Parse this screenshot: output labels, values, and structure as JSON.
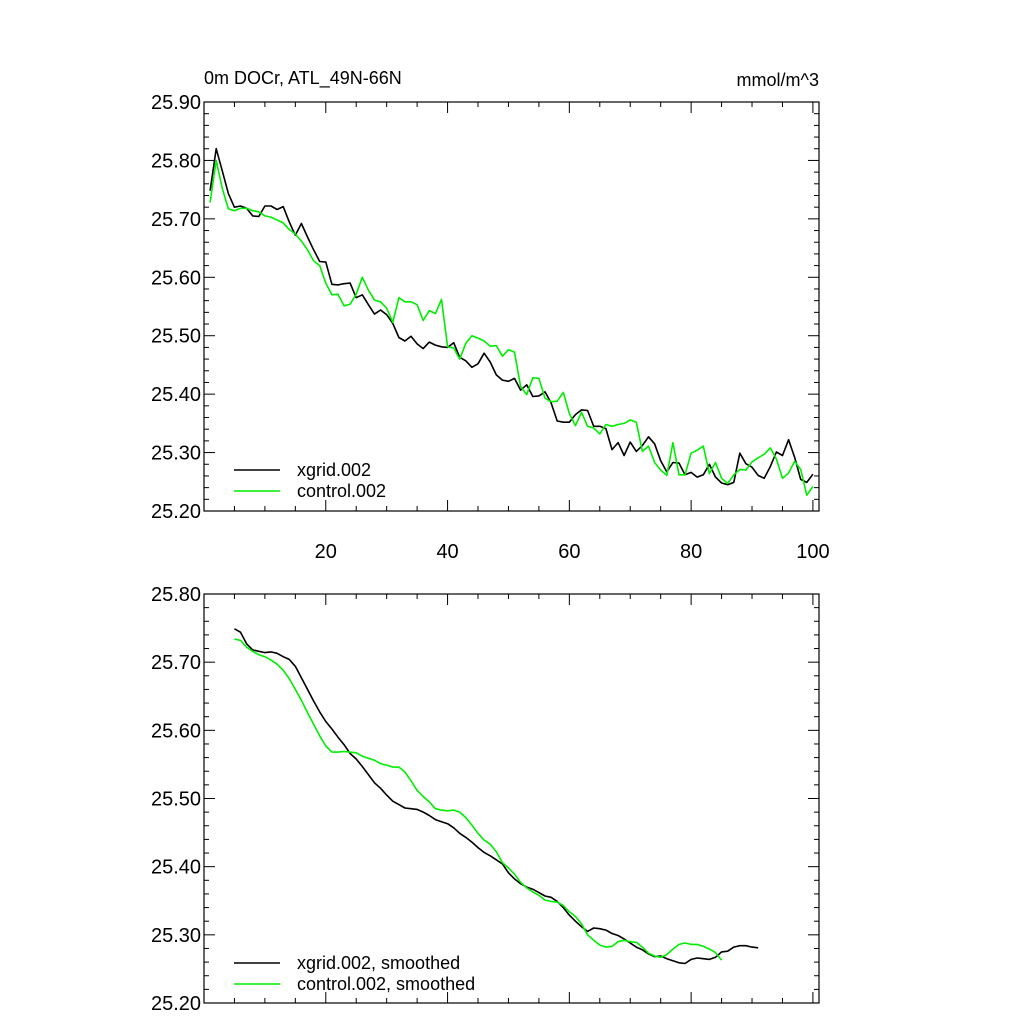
{
  "chart_data": [
    {
      "type": "line",
      "title": "0m DOCr, ATL_49N-66N",
      "units": "mmol/m^3",
      "xlabel": "",
      "ylabel": "",
      "xlim": [
        0,
        101
      ],
      "ylim": [
        25.2,
        25.9
      ],
      "x_ticks": [
        20,
        40,
        60,
        80,
        100
      ],
      "y_ticks": [
        "25.20",
        "25.30",
        "25.40",
        "25.50",
        "25.60",
        "25.70",
        "25.80",
        "25.90"
      ],
      "y_tick_values": [
        25.2,
        25.3,
        25.4,
        25.5,
        25.6,
        25.7,
        25.8,
        25.9
      ],
      "legend_position": "bottom-left",
      "grid": false,
      "series": [
        {
          "name": "xgrid.002",
          "color": "#000000",
          "x_start": 1,
          "values": [
            25.748,
            25.82,
            25.782,
            25.743,
            25.72,
            25.722,
            25.718,
            25.705,
            25.704,
            25.722,
            25.722,
            25.716,
            25.721,
            25.695,
            25.672,
            25.692,
            25.669,
            25.647,
            25.627,
            25.626,
            25.588,
            25.587,
            25.589,
            25.59,
            25.565,
            25.57,
            25.553,
            25.537,
            25.544,
            25.536,
            25.521,
            25.497,
            25.491,
            25.499,
            25.486,
            25.478,
            25.489,
            25.484,
            25.481,
            25.48,
            25.488,
            25.463,
            25.457,
            25.446,
            25.452,
            25.47,
            25.455,
            25.433,
            25.424,
            25.422,
            25.427,
            25.407,
            25.416,
            25.396,
            25.397,
            25.404,
            25.385,
            25.354,
            25.352,
            25.352,
            25.365,
            25.373,
            25.372,
            25.345,
            25.345,
            25.341,
            25.305,
            25.317,
            25.295,
            25.318,
            25.302,
            25.312,
            25.327,
            25.315,
            25.286,
            25.267,
            25.283,
            25.282,
            25.262,
            25.266,
            25.258,
            25.262,
            25.28,
            25.258,
            25.248,
            25.245,
            25.249,
            25.299,
            25.281,
            25.275,
            25.261,
            25.256,
            25.276,
            25.301,
            25.295,
            25.322,
            25.292,
            25.254,
            25.249,
            25.263
          ]
        },
        {
          "name": "control.002",
          "color": "#00ee00",
          "x_start": 1,
          "values": [
            25.728,
            25.8,
            25.752,
            25.717,
            25.714,
            25.718,
            25.718,
            25.714,
            25.712,
            25.705,
            25.703,
            25.698,
            25.693,
            25.682,
            25.674,
            25.662,
            25.647,
            25.628,
            25.62,
            25.59,
            25.57,
            25.571,
            25.551,
            25.554,
            25.571,
            25.6,
            25.578,
            25.561,
            25.558,
            25.547,
            25.523,
            25.565,
            25.558,
            25.558,
            25.553,
            25.526,
            25.543,
            25.538,
            25.562,
            25.481,
            25.479,
            25.46,
            25.487,
            25.5,
            25.496,
            25.491,
            25.482,
            25.483,
            25.465,
            25.476,
            25.472,
            25.413,
            25.399,
            25.428,
            25.427,
            25.393,
            25.387,
            25.388,
            25.403,
            25.367,
            25.346,
            25.369,
            25.345,
            25.342,
            25.332,
            25.348,
            25.345,
            25.348,
            25.35,
            25.356,
            25.352,
            25.302,
            25.311,
            25.283,
            25.27,
            25.261,
            25.317,
            25.262,
            25.262,
            25.299,
            25.304,
            25.311,
            25.264,
            25.283,
            25.256,
            25.247,
            25.262,
            25.271,
            25.27,
            25.284,
            25.291,
            25.297,
            25.308,
            25.289,
            25.256,
            25.265,
            25.285,
            25.271,
            25.227,
            25.242
          ]
        }
      ]
    },
    {
      "type": "line",
      "title": "",
      "xlabel": "",
      "ylabel": "",
      "xlim": [
        0,
        101
      ],
      "ylim": [
        25.2,
        25.8
      ],
      "y_ticks": [
        "25.20",
        "25.30",
        "25.40",
        "25.50",
        "25.60",
        "25.70",
        "25.80"
      ],
      "y_tick_values": [
        25.2,
        25.3,
        25.4,
        25.5,
        25.6,
        25.7,
        25.8
      ],
      "legend_position": "bottom-left",
      "grid": false,
      "series": [
        {
          "name": "xgrid.002, smoothed",
          "color": "#000000",
          "x_start": 5,
          "values": [
            25.749,
            25.744,
            25.727,
            25.718,
            25.716,
            25.714,
            25.715,
            25.713,
            25.708,
            25.704,
            25.694,
            25.677,
            25.66,
            25.643,
            25.627,
            25.613,
            25.602,
            25.59,
            25.579,
            25.566,
            25.558,
            25.547,
            25.535,
            25.523,
            25.515,
            25.505,
            25.496,
            25.491,
            25.486,
            25.485,
            25.484,
            25.48,
            25.475,
            25.469,
            25.466,
            25.463,
            25.457,
            25.449,
            25.443,
            25.436,
            25.428,
            25.421,
            25.416,
            25.41,
            25.404,
            25.391,
            25.382,
            25.375,
            25.37,
            25.367,
            25.362,
            25.357,
            25.355,
            25.349,
            25.34,
            25.329,
            25.32,
            25.312,
            25.305,
            25.31,
            25.309,
            25.307,
            25.302,
            25.299,
            25.294,
            25.288,
            25.282,
            25.278,
            25.272,
            25.268,
            25.269,
            25.265,
            25.262,
            25.259,
            25.258,
            25.264,
            25.266,
            25.265,
            25.264,
            25.267,
            25.275,
            25.276,
            25.282,
            25.284,
            25.284,
            25.282,
            25.281
          ]
        },
        {
          "name": "control.002, smoothed",
          "color": "#00ee00",
          "x_start": 5,
          "values": [
            25.734,
            25.732,
            25.722,
            25.716,
            25.711,
            25.708,
            25.703,
            25.697,
            25.688,
            25.676,
            25.66,
            25.644,
            25.626,
            25.609,
            25.592,
            25.577,
            25.568,
            25.568,
            25.569,
            25.568,
            25.567,
            25.562,
            25.559,
            25.556,
            25.551,
            25.549,
            25.546,
            25.546,
            25.539,
            25.526,
            25.512,
            25.503,
            25.495,
            25.485,
            25.483,
            25.482,
            25.483,
            25.48,
            25.472,
            25.461,
            25.449,
            25.439,
            25.433,
            25.422,
            25.406,
            25.398,
            25.389,
            25.377,
            25.369,
            25.363,
            25.358,
            25.351,
            25.349,
            25.348,
            25.343,
            25.334,
            25.327,
            25.316,
            25.3,
            25.292,
            25.285,
            25.282,
            25.283,
            25.29,
            25.292,
            25.29,
            25.289,
            25.282,
            25.273,
            25.269,
            25.267,
            25.271,
            25.279,
            25.286,
            25.288,
            25.286,
            25.286,
            25.283,
            25.279,
            25.274,
            25.263
          ]
        }
      ]
    }
  ]
}
